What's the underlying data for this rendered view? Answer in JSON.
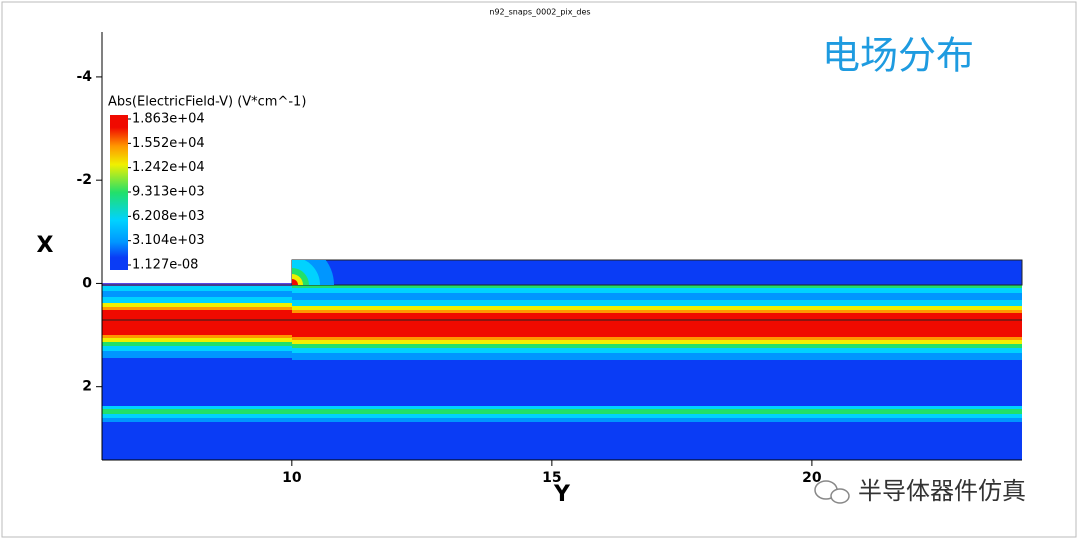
{
  "chart_data": {
    "type": "heatmap",
    "title": "n92_snaps_0002_pix_des",
    "annotation": "电场分布",
    "watermark": "半导体器件仿真",
    "x_label": "Y",
    "y_label": "X",
    "xlim": [
      6.35,
      24.04
    ],
    "xticks": [
      10,
      15,
      20
    ],
    "ylim": [
      -4.87,
      3.42
    ],
    "yticks": [
      -4,
      -2,
      0,
      2
    ],
    "colorbar": {
      "title": "Abs(ElectricField-V) (V*cm^-1)",
      "lim": [
        1.127e-08,
        18630
      ],
      "ticks": [
        {
          "value": 18630,
          "label": "1.863e+04"
        },
        {
          "value": 15520,
          "label": "1.552e+04"
        },
        {
          "value": 12420,
          "label": "1.242e+04"
        },
        {
          "value": 9313,
          "label": "9.313e+03"
        },
        {
          "value": 6208,
          "label": "6.208e+03"
        },
        {
          "value": 3104,
          "label": "3.104e+03"
        },
        {
          "value": 1.127e-08,
          "label": "1.127e-08"
        }
      ]
    }
  }
}
